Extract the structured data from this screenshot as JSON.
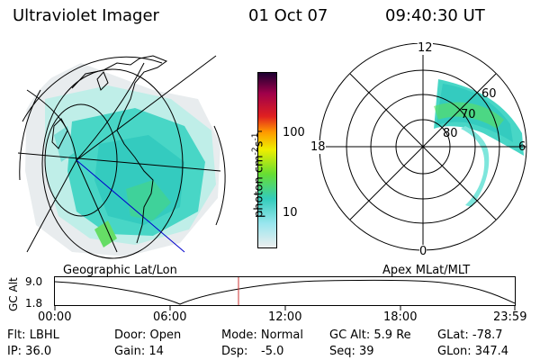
{
  "header": {
    "title": "Ultraviolet Imager",
    "date": "01 Oct 07",
    "time": "09:40:30 UT"
  },
  "colorbar": {
    "label": "photon cm",
    "label_exp1": "-2",
    "label_mid": "s",
    "label_exp2": "-1",
    "ticks": [
      "100",
      "10"
    ]
  },
  "polar_plot": {
    "labels": {
      "top": "12",
      "bottom": "0",
      "left": "18",
      "right": "6",
      "lat60": "60",
      "lat70": "70",
      "lat80": "80"
    }
  },
  "panel_titles": {
    "left": "Geographic Lat/Lon",
    "right": "Apex MLat/MLT"
  },
  "altitude_plot": {
    "ylabel": "GC Alt",
    "yticks": [
      "9.0",
      "1.8"
    ],
    "xticks": [
      "00:00",
      "06:00",
      "12:00",
      "18:00",
      "23:59"
    ]
  },
  "info": {
    "flt": "Flt: LBHL",
    "ip": "IP: 36.0",
    "door": "Door: Open",
    "gain": "Gain: 14",
    "mode": "Mode: Normal",
    "dsp_label": "Dsp:",
    "dsp_value": "-5.0",
    "gcalt": "GC Alt: 5.9 Re",
    "seq": "Seq: 39",
    "glat": "GLat: -78.7",
    "glon": "GLon: 347.4"
  },
  "colors": {
    "cyan": "#40e0d0",
    "green": "#5ee05e",
    "marker": "#cc3333"
  }
}
